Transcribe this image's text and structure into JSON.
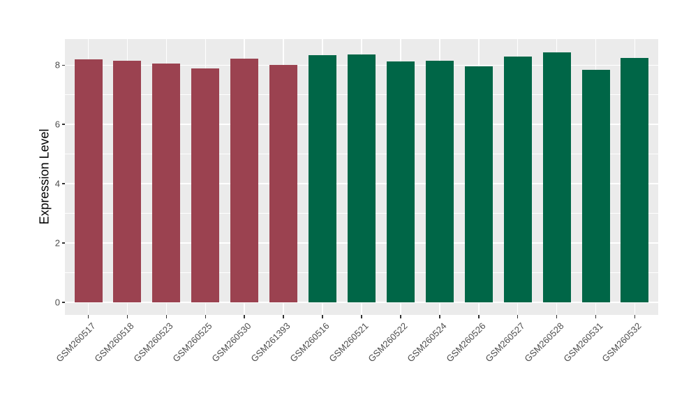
{
  "figure": {
    "background": "#ffffff",
    "panel_background": "#EBEBEB",
    "grid_color": "#ffffff",
    "axis_text_color": "#4D4D4D",
    "axis_title_color": "#000000",
    "tick_color": "#333333"
  },
  "chart_data": {
    "type": "bar",
    "title": "",
    "xlabel": "",
    "ylabel": "Expression Level",
    "categories": [
      "GSM260517",
      "GSM260518",
      "GSM260523",
      "GSM260525",
      "GSM260530",
      "GSM261393",
      "GSM260516",
      "GSM260521",
      "GSM260522",
      "GSM260524",
      "GSM260526",
      "GSM260527",
      "GSM260528",
      "GSM260531",
      "GSM260532"
    ],
    "values": [
      8.2,
      8.16,
      8.05,
      7.89,
      8.21,
      8.0,
      8.34,
      8.36,
      8.12,
      8.16,
      7.97,
      8.3,
      8.44,
      7.85,
      8.25
    ],
    "color_group": [
      "red",
      "red",
      "red",
      "red",
      "red",
      "red",
      "green",
      "green",
      "green",
      "green",
      "green",
      "green",
      "green",
      "green",
      "green"
    ],
    "group_colors": {
      "red": "#9B4250",
      "green": "#006647"
    },
    "ylim": [
      0,
      8.9
    ],
    "yticks": [
      0,
      2,
      4,
      6,
      8
    ],
    "ytick_labels": [
      "0",
      "2",
      "4",
      "6",
      "8"
    ],
    "yticks_minor": [
      1,
      3,
      5,
      7
    ],
    "grid": true,
    "legend_position": "none"
  }
}
